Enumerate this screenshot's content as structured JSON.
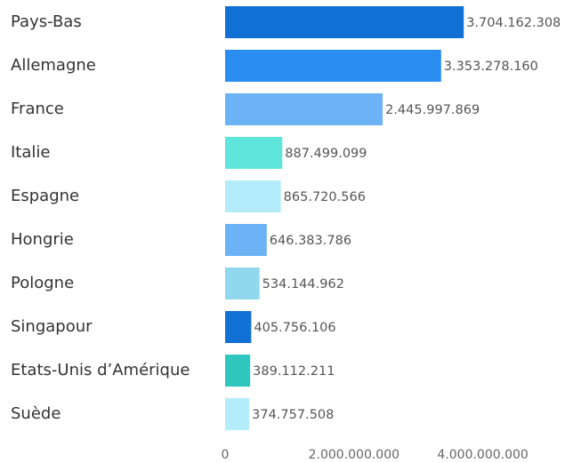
{
  "chart_data": {
    "type": "bar",
    "orientation": "horizontal",
    "categories": [
      "Pays-Bas",
      "Allemagne",
      "France",
      "Italie",
      "Espagne",
      "Hongrie",
      "Pologne",
      "Singapour",
      "Etats-Unis d’Amérique",
      "Suède"
    ],
    "values": [
      3704162308,
      3353278160,
      2445997869,
      887499099,
      865720566,
      646383786,
      534144962,
      405756106,
      389112211,
      374757508
    ],
    "value_labels": [
      "3.704.162.308",
      "3.353.278.160",
      "2.445.997.869",
      "887.499.099",
      "865.720.566",
      "646.383.786",
      "534.144.962",
      "405.756.106",
      "389.112.211",
      "374.757.508"
    ],
    "colors": [
      "#1170d4",
      "#2a8ef0",
      "#6cb3f5",
      "#5ee6dc",
      "#b5ecfb",
      "#6cb3f5",
      "#8fd8ee",
      "#1170d4",
      "#2ec7bd",
      "#b5ecfb"
    ],
    "xlim": [
      0,
      5400000000
    ],
    "xticks": [
      0,
      {
        "value": 2000000000,
        "label": "2.000.000.000"
      },
      {
        "value": 4000000000,
        "label": "4.000.000.000"
      }
    ]
  }
}
